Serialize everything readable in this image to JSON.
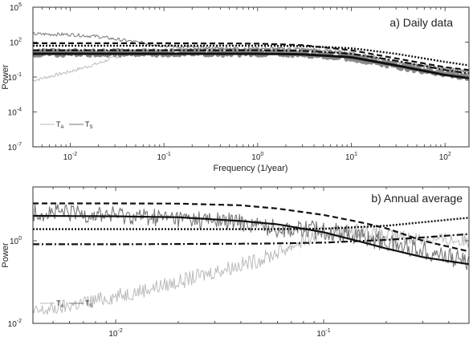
{
  "chart_data": [
    {
      "type": "line",
      "title": "a) Daily data",
      "xlabel": "Frequency (1/year)",
      "ylabel": "Power",
      "xscale": "log",
      "yscale": "log",
      "xlim": [
        0.004,
        180
      ],
      "ylim": [
        1e-07,
        100000.0
      ],
      "grid": false,
      "legend_position": "bottom-left",
      "x_tick_labels": [
        {
          "value": 0.01,
          "base": "10",
          "exp": "-2"
        },
        {
          "value": 0.1,
          "base": "10",
          "exp": "-1"
        },
        {
          "value": 1,
          "base": "10",
          "exp": "0"
        },
        {
          "value": 10,
          "base": "10",
          "exp": "1"
        },
        {
          "value": 100,
          "base": "10",
          "exp": "2"
        }
      ],
      "y_tick_labels": [
        {
          "value": 1e-07,
          "base": "10",
          "exp": "-7"
        },
        {
          "value": 0.0001,
          "base": "10",
          "exp": "-4"
        },
        {
          "value": 0.1,
          "base": "10",
          "exp": "-1"
        },
        {
          "value": 100,
          "base": "10",
          "exp": "2"
        },
        {
          "value": 100000,
          "base": "10",
          "exp": "5"
        }
      ],
      "legend": [
        {
          "label": "T",
          "sub": "A",
          "color": "#bbbbbb"
        },
        {
          "label": "T",
          "sub": "S",
          "color": "#777777"
        }
      ],
      "series": [
        {
          "kind": "noisy",
          "color": "#bbbbbb",
          "width": 1,
          "x": [
            0.004,
            0.01,
            0.02,
            0.03,
            0.05,
            0.1,
            0.3,
            1,
            3,
            10,
            30,
            100,
            180
          ],
          "y": [
            0.05,
            0.3,
            1.5,
            5,
            20,
            25,
            25,
            25,
            24,
            12,
            2,
            0.5,
            0.3
          ],
          "noise": 0.15
        },
        {
          "kind": "noisy",
          "color": "#777777",
          "width": 1,
          "x": [
            0.004,
            0.01,
            0.02,
            0.05,
            0.1,
            0.3,
            1,
            3,
            10,
            30,
            100,
            180
          ],
          "y": [
            500,
            450,
            300,
            100,
            50,
            30,
            28,
            25,
            12,
            2,
            0.5,
            0.3
          ],
          "noise": 0.15
        },
        {
          "kind": "noisy",
          "color": "#888888",
          "width": 5,
          "x": [
            0.004,
            0.1,
            1,
            3,
            10,
            30,
            100,
            180
          ],
          "y": [
            12,
            12,
            12,
            11,
            5,
            1,
            0.2,
            0.1
          ],
          "noise": 0.25
        },
        {
          "kind": "smooth",
          "color": "#111111",
          "width": 2.2,
          "dash": "7,4",
          "x": [
            0.004,
            0.1,
            1,
            3,
            10,
            30,
            100,
            180
          ],
          "y": [
            80,
            80,
            75,
            55,
            20,
            4,
            0.7,
            0.4
          ]
        },
        {
          "kind": "smooth",
          "color": "#111111",
          "width": 2.4,
          "dash": "2,2",
          "x": [
            0.004,
            0.1,
            1,
            3,
            10,
            30,
            100,
            180
          ],
          "y": [
            50,
            50,
            50,
            45,
            30,
            10,
            2,
            1
          ]
        },
        {
          "kind": "smooth",
          "color": "#111111",
          "width": 2.2,
          "dash": "8,3,2,3",
          "x": [
            0.004,
            0.1,
            1,
            3,
            10,
            30,
            100,
            180
          ],
          "y": [
            20,
            20,
            20,
            18,
            10,
            2.5,
            0.4,
            0.2
          ]
        },
        {
          "kind": "smooth",
          "color": "#111111",
          "width": 3,
          "x": [
            0.004,
            0.1,
            1,
            3,
            10,
            30,
            100,
            180
          ],
          "y": [
            10,
            10,
            10,
            9,
            5,
            1,
            0.15,
            0.08
          ]
        }
      ]
    },
    {
      "type": "line",
      "title": "b) Annual average",
      "xlabel": "",
      "ylabel": "Power",
      "xscale": "log",
      "yscale": "log",
      "xlim": [
        0.004,
        0.5
      ],
      "ylim": [
        0.01,
        20
      ],
      "grid": false,
      "legend_position": "bottom-left",
      "x_tick_labels": [
        {
          "value": 0.01,
          "base": "10",
          "exp": "-2"
        },
        {
          "value": 0.1,
          "base": "10",
          "exp": "-1"
        }
      ],
      "y_tick_labels": [
        {
          "value": 0.01,
          "base": "10",
          "exp": "-2"
        },
        {
          "value": 1,
          "base": "10",
          "exp": "0"
        }
      ],
      "legend": [
        {
          "label": "T",
          "sub": "A",
          "color": "#bbbbbb"
        },
        {
          "label": "T",
          "sub": "S",
          "color": "#777777"
        }
      ],
      "series": [
        {
          "kind": "noisy",
          "color": "#bbbbbb",
          "width": 1,
          "x": [
            0.004,
            0.01,
            0.02,
            0.03,
            0.05,
            0.08,
            0.1,
            0.15,
            0.2,
            0.3,
            0.5
          ],
          "y": [
            0.018,
            0.045,
            0.1,
            0.18,
            0.35,
            1.0,
            1.5,
            1.8,
            1.3,
            1.1,
            1.0
          ],
          "noise": 0.18
        },
        {
          "kind": "noisy",
          "color": "#777777",
          "width": 1.1,
          "x": [
            0.004,
            0.01,
            0.02,
            0.04,
            0.06,
            0.1,
            0.15,
            0.2,
            0.3,
            0.5
          ],
          "y": [
            5,
            4.2,
            3.5,
            2.8,
            2.0,
            1.8,
            1.3,
            0.9,
            0.6,
            0.3
          ],
          "noise": 0.22
        },
        {
          "kind": "smooth",
          "color": "#111111",
          "width": 2.2,
          "dash": "7,4",
          "x": [
            0.004,
            0.01,
            0.02,
            0.04,
            0.06,
            0.1,
            0.15,
            0.2,
            0.3,
            0.5
          ],
          "y": [
            8,
            8,
            7.9,
            7.2,
            6,
            4.2,
            2.8,
            2.0,
            1.0,
            0.55
          ]
        },
        {
          "kind": "smooth",
          "color": "#111111",
          "width": 2.2,
          "x": [
            0.004,
            0.01,
            0.02,
            0.04,
            0.06,
            0.1,
            0.15,
            0.2,
            0.3,
            0.5
          ],
          "y": [
            4,
            3.9,
            3.7,
            3.0,
            2.5,
            1.6,
            0.95,
            0.65,
            0.4,
            0.27
          ]
        },
        {
          "kind": "smooth",
          "color": "#111111",
          "width": 2.4,
          "dash": "2,2",
          "x": [
            0.004,
            0.01,
            0.05,
            0.1,
            0.2,
            0.3,
            0.5
          ],
          "y": [
            1.9,
            1.9,
            1.9,
            1.95,
            2.3,
            2.8,
            3.6
          ]
        },
        {
          "kind": "smooth",
          "color": "#111111",
          "width": 2.2,
          "dash": "8,3,2,3",
          "x": [
            0.004,
            0.01,
            0.05,
            0.1,
            0.2,
            0.3,
            0.5
          ],
          "y": [
            0.82,
            0.82,
            0.85,
            0.9,
            1.05,
            1.2,
            1.45
          ]
        }
      ]
    }
  ]
}
